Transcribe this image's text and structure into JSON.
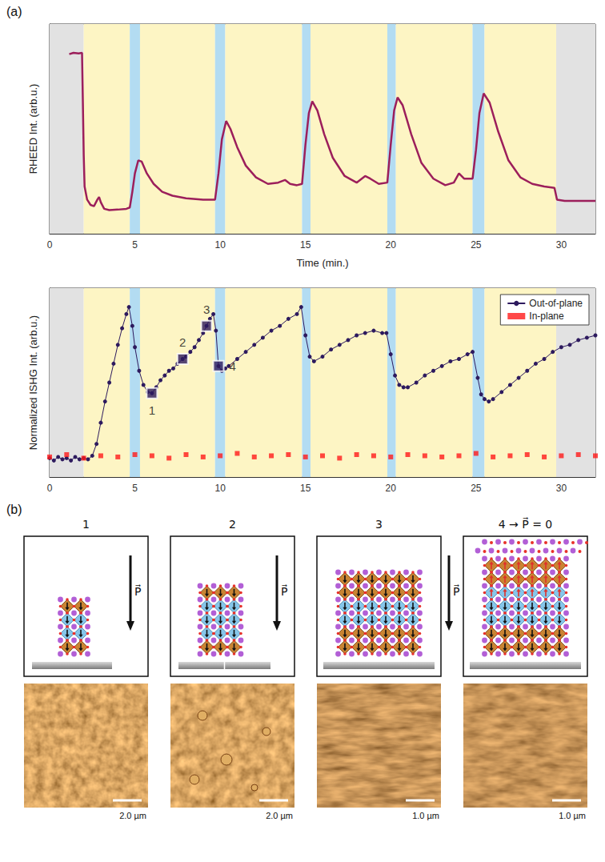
{
  "panel_a_label": "(a)",
  "chart_data": [
    {
      "type": "line",
      "y_label": "RHEED Int. (arb.u.)",
      "x_label": "Time (min.)",
      "xlim": [
        0,
        32
      ],
      "xticks": [
        0,
        5,
        10,
        15,
        20,
        25,
        30
      ],
      "ylim": [
        0,
        8
      ],
      "yticks": [
        0,
        1,
        2,
        3,
        4,
        5,
        6,
        7,
        8
      ],
      "tick_labels": "x",
      "grid": false,
      "regions": [
        {
          "x": [
            0,
            2
          ],
          "color": "#e2e2e2"
        },
        {
          "x": [
            2,
            4.7
          ],
          "color": "#fdf5c4"
        },
        {
          "x": [
            4.7,
            5.3
          ],
          "color": "#b3dcf2"
        },
        {
          "x": [
            5.3,
            9.7
          ],
          "color": "#fdf5c4"
        },
        {
          "x": [
            9.7,
            10.3
          ],
          "color": "#b3dcf2"
        },
        {
          "x": [
            10.3,
            14.8
          ],
          "color": "#fdf5c4"
        },
        {
          "x": [
            14.8,
            15.3
          ],
          "color": "#b3dcf2"
        },
        {
          "x": [
            15.3,
            19.8
          ],
          "color": "#fdf5c4"
        },
        {
          "x": [
            19.8,
            20.3
          ],
          "color": "#b3dcf2"
        },
        {
          "x": [
            20.3,
            24.8
          ],
          "color": "#fdf5c4"
        },
        {
          "x": [
            24.8,
            25.5
          ],
          "color": "#b3dcf2"
        },
        {
          "x": [
            25.5,
            29.7
          ],
          "color": "#fdf5c4"
        },
        {
          "x": [
            29.7,
            32
          ],
          "color": "#e2e2e2"
        }
      ],
      "series": [
        {
          "color": "#9c1f5b",
          "line_style": "solid",
          "x": [
            1.15,
            1.4,
            1.7,
            1.9,
            1.95,
            2.0,
            2.05,
            2.2,
            2.4,
            2.6,
            2.8,
            2.9,
            3.0,
            3.2,
            3.5,
            4.0,
            4.5,
            4.7,
            4.85,
            5.0,
            5.2,
            5.4,
            5.7,
            6.1,
            6.6,
            7.2,
            8.0,
            9.0,
            9.7,
            9.9,
            10.1,
            10.35,
            10.6,
            11.0,
            11.5,
            12.1,
            12.8,
            13.4,
            13.8,
            14.1,
            14.5,
            14.8,
            15.0,
            15.2,
            15.4,
            15.7,
            16.1,
            16.6,
            17.3,
            18.0,
            18.5,
            18.8,
            19.3,
            19.8,
            20.0,
            20.2,
            20.4,
            20.7,
            21.2,
            21.8,
            22.5,
            23.2,
            23.7,
            24.0,
            24.3,
            24.8,
            25.0,
            25.2,
            25.45,
            25.8,
            26.3,
            26.9,
            27.6,
            28.3,
            29.0,
            29.6,
            29.75,
            30.2,
            31.0,
            32.0
          ],
          "values": [
            6.85,
            6.9,
            6.88,
            6.9,
            5.0,
            3.0,
            1.8,
            1.3,
            1.1,
            1.05,
            1.3,
            1.4,
            1.2,
            0.95,
            0.9,
            0.92,
            0.95,
            1.0,
            1.6,
            2.3,
            2.8,
            2.75,
            2.3,
            1.9,
            1.6,
            1.45,
            1.35,
            1.3,
            1.3,
            2.3,
            3.6,
            4.3,
            4.0,
            3.3,
            2.6,
            2.15,
            1.9,
            1.95,
            2.05,
            1.9,
            1.85,
            1.9,
            3.4,
            4.6,
            5.05,
            4.7,
            3.8,
            2.9,
            2.2,
            1.95,
            2.2,
            2.1,
            1.9,
            1.95,
            3.4,
            4.7,
            5.2,
            4.9,
            3.8,
            2.7,
            2.1,
            1.85,
            1.95,
            2.3,
            2.1,
            2.1,
            3.2,
            4.6,
            5.35,
            5.0,
            3.9,
            2.8,
            2.15,
            1.9,
            1.8,
            1.75,
            1.3,
            1.25,
            1.25,
            1.25
          ]
        }
      ]
    },
    {
      "type": "line",
      "y_label": "Normalized ISHG Int. (arb.u.)",
      "xlim": [
        0,
        32
      ],
      "xticks": [
        0,
        5,
        10,
        15,
        20,
        25,
        30
      ],
      "ylim": [
        0,
        8
      ],
      "yticks": [
        0,
        1,
        2,
        3,
        4,
        5,
        6,
        7,
        8
      ],
      "tick_labels": "x",
      "grid": false,
      "legend": "upper right",
      "regions": [
        {
          "x": [
            0,
            2
          ],
          "color": "#e2e2e2"
        },
        {
          "x": [
            2,
            4.7
          ],
          "color": "#fdf5c4"
        },
        {
          "x": [
            4.7,
            5.3
          ],
          "color": "#b3dcf2"
        },
        {
          "x": [
            5.3,
            9.7
          ],
          "color": "#fdf5c4"
        },
        {
          "x": [
            9.7,
            10.3
          ],
          "color": "#b3dcf2"
        },
        {
          "x": [
            10.3,
            14.8
          ],
          "color": "#fdf5c4"
        },
        {
          "x": [
            14.8,
            15.3
          ],
          "color": "#b3dcf2"
        },
        {
          "x": [
            15.3,
            19.8
          ],
          "color": "#fdf5c4"
        },
        {
          "x": [
            19.8,
            20.3
          ],
          "color": "#b3dcf2"
        },
        {
          "x": [
            20.3,
            24.8
          ],
          "color": "#fdf5c4"
        },
        {
          "x": [
            24.8,
            25.5
          ],
          "color": "#b3dcf2"
        },
        {
          "x": [
            25.5,
            29.7
          ],
          "color": "#fdf5c4"
        },
        {
          "x": [
            29.7,
            32
          ],
          "color": "#e2e2e2"
        }
      ],
      "series": [
        {
          "name": "Out-of-plane",
          "color": "#2d1a5e",
          "marker": "circle",
          "line_style": "solid",
          "x": [
            0,
            0.25,
            0.5,
            0.75,
            1,
            1.25,
            1.5,
            1.75,
            2,
            2.25,
            2.5,
            2.75,
            3,
            3.25,
            3.5,
            3.75,
            4,
            4.25,
            4.5,
            4.65,
            4.85,
            5,
            5.25,
            5.5,
            5.75,
            6,
            6.25,
            6.5,
            6.75,
            7,
            7.25,
            7.5,
            7.8,
            8,
            8.25,
            8.5,
            8.75,
            9,
            9.2,
            9.4,
            9.6,
            9.75,
            9.9,
            10.1,
            10.3,
            10.5,
            11,
            11.5,
            12,
            12.5,
            13,
            13.5,
            14,
            14.5,
            14.75,
            15,
            15.25,
            15.5,
            16,
            16.5,
            17,
            17.5,
            18,
            18.5,
            19,
            19.5,
            19.75,
            20,
            20.25,
            20.5,
            20.75,
            21,
            21.5,
            22,
            22.5,
            23,
            23.5,
            24,
            24.5,
            24.8,
            25.1,
            25.3,
            25.5,
            25.75,
            26,
            26.5,
            27,
            27.5,
            28,
            28.5,
            29,
            29.5,
            30,
            30.5,
            31,
            31.5,
            32
          ],
          "values": [
            0.8,
            0.7,
            0.85,
            0.75,
            0.8,
            0.7,
            0.85,
            0.75,
            0.8,
            0.75,
            0.9,
            1.4,
            2.3,
            3.2,
            4.0,
            4.8,
            5.6,
            6.3,
            6.9,
            7.2,
            6.4,
            5.5,
            4.5,
            3.9,
            3.6,
            3.55,
            3.8,
            4.1,
            4.3,
            4.5,
            4.6,
            4.8,
            5.0,
            5.1,
            5.3,
            5.5,
            5.8,
            6.1,
            6.4,
            6.7,
            6.9,
            6.2,
            4.7,
            4.5,
            4.6,
            4.7,
            5.0,
            5.3,
            5.6,
            5.9,
            6.2,
            6.4,
            6.7,
            6.9,
            7.2,
            6.0,
            5.1,
            4.9,
            5.1,
            5.4,
            5.6,
            5.8,
            6.0,
            6.1,
            6.2,
            6.1,
            6.1,
            5.2,
            4.3,
            3.9,
            3.8,
            3.8,
            4.0,
            4.3,
            4.5,
            4.7,
            4.9,
            5.0,
            5.2,
            5.3,
            4.2,
            3.5,
            3.3,
            3.2,
            3.3,
            3.6,
            3.9,
            4.2,
            4.5,
            4.8,
            5.0,
            5.3,
            5.5,
            5.6,
            5.8,
            5.9,
            6.0
          ]
        },
        {
          "name": "In-plane",
          "color": "#ff1a1a",
          "marker": "square",
          "line_style": "none",
          "x": [
            0,
            1,
            2,
            3,
            4,
            5,
            6,
            7,
            8,
            9,
            10,
            11,
            12,
            13,
            14,
            15,
            16,
            17,
            18,
            19,
            20,
            21,
            22,
            23,
            24,
            25,
            26,
            27,
            28,
            29,
            30,
            31,
            32
          ],
          "values": [
            0.85,
            0.95,
            0.8,
            0.9,
            0.85,
            0.95,
            0.9,
            0.8,
            0.95,
            0.85,
            0.9,
            1.0,
            0.85,
            0.9,
            0.95,
            0.85,
            0.9,
            0.8,
            0.95,
            0.9,
            0.85,
            0.95,
            0.9,
            0.85,
            0.9,
            1.0,
            0.85,
            0.9,
            0.95,
            0.85,
            0.9,
            0.95,
            0.9
          ]
        }
      ],
      "annotations": [
        {
          "text": "1",
          "x": 6,
          "y": 3.55
        },
        {
          "text": "2",
          "x": 7.8,
          "y": 5.0
        },
        {
          "text": "3",
          "x": 9.2,
          "y": 6.4
        },
        {
          "text": "4",
          "x": 9.9,
          "y": 4.7
        }
      ]
    }
  ],
  "panel_b": {
    "label": "(b)",
    "polarization_symbol": "P⃗",
    "panels": [
      {
        "title": "1",
        "scale_bar": "2.0 µm"
      },
      {
        "title": "2",
        "scale_bar": "2.0 µm"
      },
      {
        "title": "3",
        "scale_bar": "1.0 µm"
      },
      {
        "title": "4 → P⃗ = 0",
        "scale_bar": "1.0 µm"
      }
    ]
  }
}
